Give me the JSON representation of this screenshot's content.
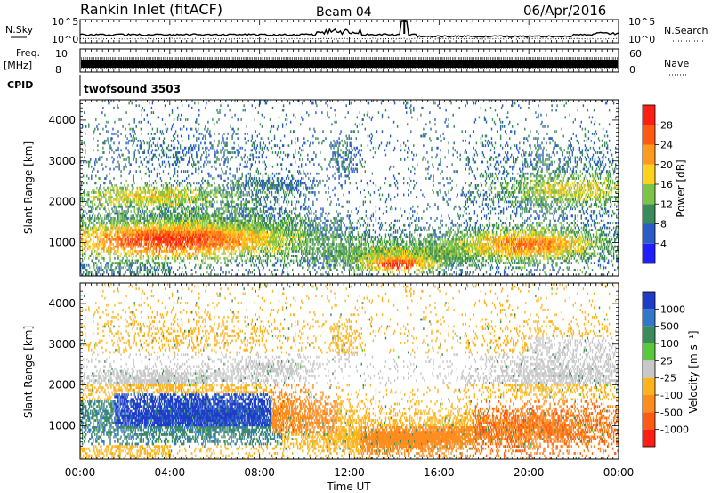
{
  "header": {
    "station": "Rankin Inlet (fitACF)",
    "beam": "Beam 04",
    "date": "06/Apr/2016"
  },
  "chart_data": [
    {
      "type": "line",
      "panel": "noise",
      "left_label": "N.Sky",
      "right_label": "N.Search",
      "left_ticks": [
        "10^5",
        "10^0"
      ],
      "right_ticks": [
        "10^5",
        "10^0"
      ],
      "series": [
        {
          "name": "N.Sky",
          "style": "solid"
        },
        {
          "name": "N.Search",
          "style": "dotted"
        }
      ]
    },
    {
      "type": "line",
      "panel": "frequency",
      "left_label_1": "Freq.",
      "left_label_2": "[MHz]",
      "right_label": "Nave",
      "left_ticks": [
        "10",
        "8"
      ],
      "right_ticks": [
        "60",
        "0"
      ],
      "cpid_label": "CPID",
      "cpid_value": "twofsound 3503",
      "series": [
        {
          "name": "Freq.",
          "style": "solid"
        },
        {
          "name": "Nave",
          "style": "dotted"
        }
      ]
    },
    {
      "type": "heatmap",
      "panel": "power",
      "ylabel": "Slant Range [km]",
      "y_ticks": [
        "1000",
        "2000",
        "3000",
        "4000"
      ],
      "ylim": [
        180,
        4500
      ],
      "colorbar_label": "Power [dB]",
      "colorbar_ticks": [
        "4",
        "8",
        "12",
        "16",
        "20",
        "24",
        "28"
      ],
      "colorbar_colors": [
        "#1e1eff",
        "#2a5cc8",
        "#3a8a5a",
        "#7cc448",
        "#ffd21e",
        "#ff9a1e",
        "#ff5a14",
        "#ff1e14"
      ]
    },
    {
      "type": "heatmap",
      "panel": "velocity",
      "ylabel": "Slant Range [km]",
      "y_ticks": [
        "1000",
        "2000",
        "3000",
        "4000"
      ],
      "ylim": [
        180,
        4500
      ],
      "colorbar_label": "Velocity [m s⁻¹]",
      "colorbar_ticks": [
        "1000",
        "500",
        "100",
        "25",
        "-25",
        "-100",
        "-500",
        "-1000"
      ],
      "colorbar_colors": [
        "#1e3cc8",
        "#3278c8",
        "#3c8c5a",
        "#5ac83c",
        "#c8c8c8",
        "#ffb41e",
        "#ff8c1e",
        "#ff5a14",
        "#ff1e14"
      ]
    }
  ],
  "time_axis": {
    "xlabel": "Time UT",
    "ticks": [
      "00:00",
      "04:00",
      "08:00",
      "12:00",
      "16:00",
      "20:00",
      "00:00"
    ]
  }
}
